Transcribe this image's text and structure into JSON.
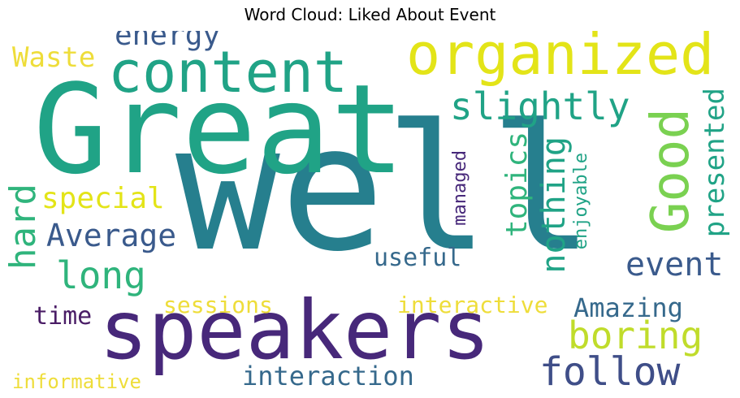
{
  "title": "Word Cloud: Liked About Event",
  "colors": {
    "purple": "#47287a",
    "dark_purple": "#4a1d66",
    "indigo": "#3f4e88",
    "blue": "#3a5a8c",
    "steel": "#36698c",
    "teal": "#267f8e",
    "green_teal": "#20a386",
    "green": "#2fb47c",
    "light_green": "#7ad151",
    "lime": "#a9d934",
    "yellow_green": "#c0dc2b",
    "yellow": "#e3e418",
    "pale_yellow": "#eedd3a"
  },
  "words": [
    {
      "text": "well"
    },
    {
      "text": "Great"
    },
    {
      "text": "speakers"
    },
    {
      "text": "organized"
    },
    {
      "text": "content"
    },
    {
      "text": "slightly"
    },
    {
      "text": "Good"
    },
    {
      "text": "energy"
    },
    {
      "text": "Waste"
    },
    {
      "text": "follow"
    },
    {
      "text": "boring"
    },
    {
      "text": "special"
    },
    {
      "text": "Average"
    },
    {
      "text": "long"
    },
    {
      "text": "hard"
    },
    {
      "text": "topics"
    },
    {
      "text": "nothing"
    },
    {
      "text": "presented"
    },
    {
      "text": "event"
    },
    {
      "text": "useful"
    },
    {
      "text": "managed"
    },
    {
      "text": "enjoyable"
    },
    {
      "text": "Amazing"
    },
    {
      "text": "interactive"
    },
    {
      "text": "sessions"
    },
    {
      "text": "time"
    },
    {
      "text": "interaction"
    },
    {
      "text": "informative"
    }
  ]
}
